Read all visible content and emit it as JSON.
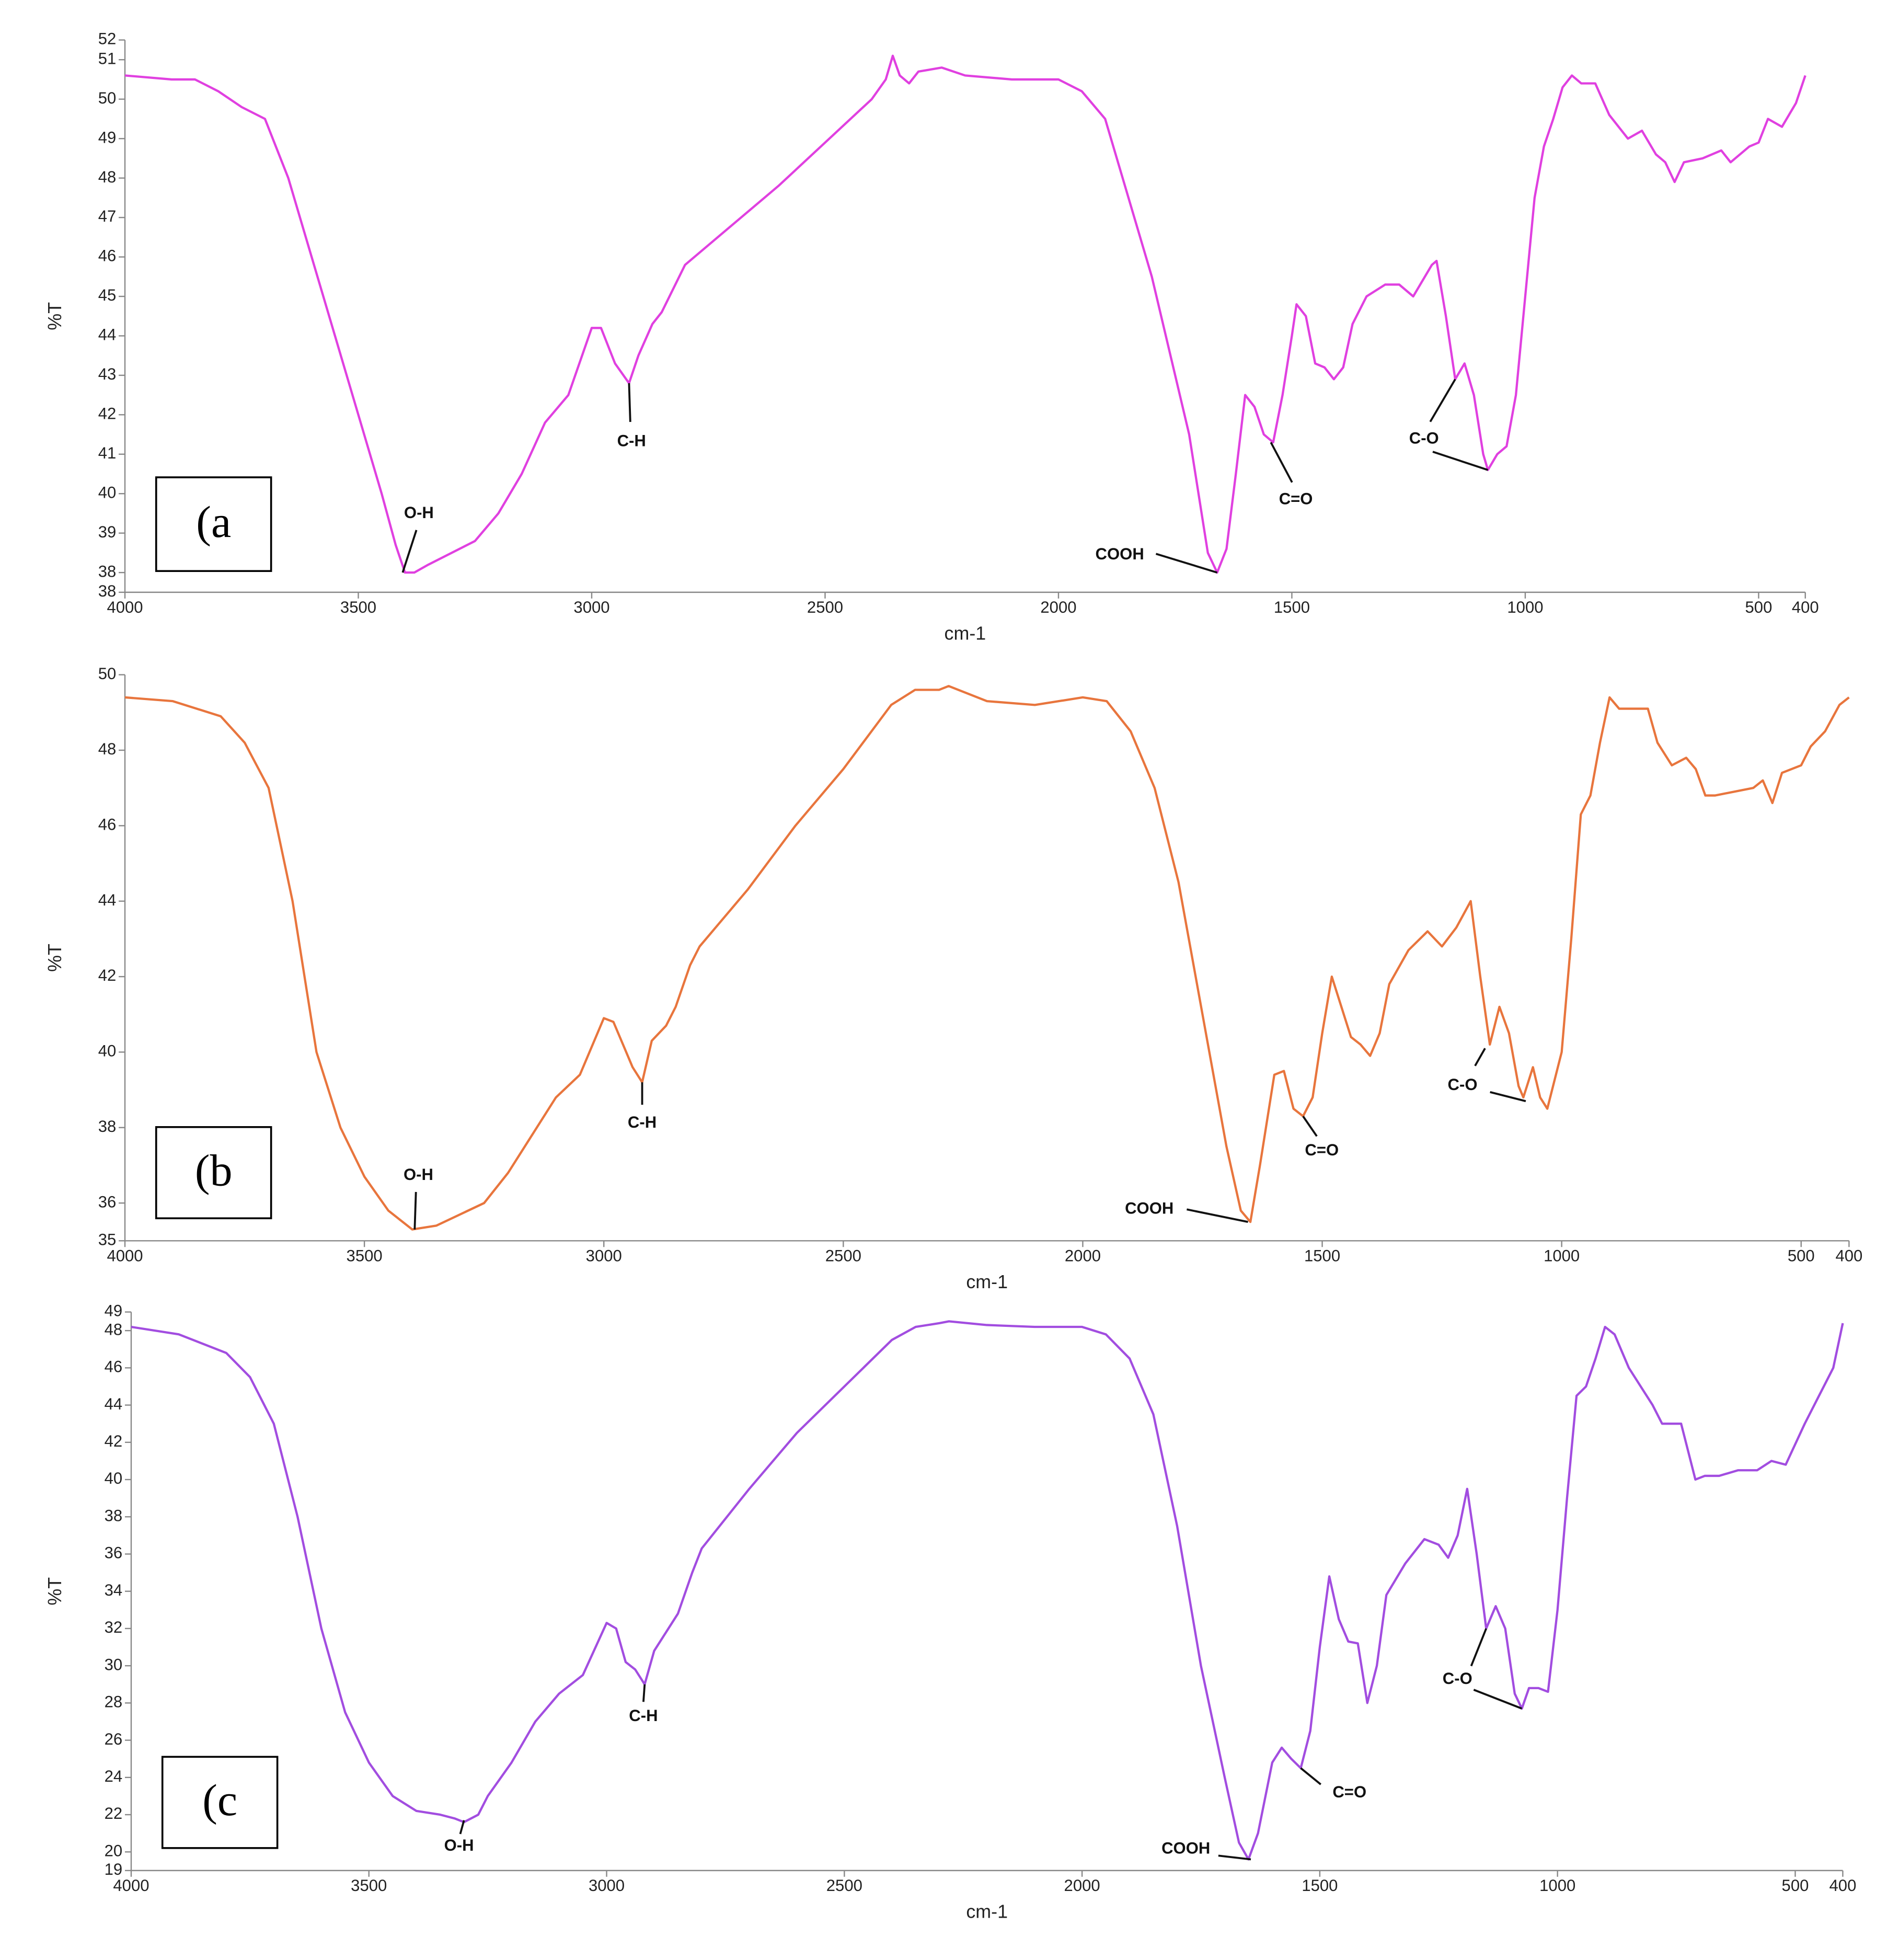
{
  "chart_data": [
    {
      "type": "line",
      "panel_label": "(a",
      "xlabel": "cm-1",
      "ylabel": "%T",
      "color": "#e040e0",
      "xlim": [
        4000,
        400
      ],
      "ylim": [
        37.5,
        51.5
      ],
      "xticks": [
        4000,
        3500,
        3000,
        2500,
        2000,
        1500,
        1000,
        500,
        400
      ],
      "yticks": [
        {
          "value": 37.5,
          "label": "38"
        },
        38,
        39,
        40,
        41,
        42,
        43,
        44,
        45,
        46,
        47,
        48,
        49,
        50,
        51,
        {
          "value": 51.5,
          "label": "52"
        }
      ],
      "x": [
        4000,
        3900,
        3850,
        3800,
        3750,
        3700,
        3650,
        3600,
        3550,
        3500,
        3450,
        3420,
        3400,
        3380,
        3350,
        3300,
        3250,
        3200,
        3150,
        3100,
        3050,
        3000,
        2980,
        2950,
        2920,
        2900,
        2870,
        2850,
        2800,
        2750,
        2700,
        2600,
        2500,
        2400,
        2370,
        2355,
        2340,
        2320,
        2300,
        2250,
        2200,
        2100,
        2000,
        1950,
        1900,
        1850,
        1800,
        1750,
        1720,
        1700,
        1680,
        1660,
        1640,
        1620,
        1600,
        1580,
        1560,
        1540,
        1520,
        1500,
        1490,
        1470,
        1450,
        1430,
        1410,
        1390,
        1370,
        1340,
        1300,
        1270,
        1240,
        1220,
        1200,
        1190,
        1170,
        1150,
        1130,
        1110,
        1090,
        1080,
        1060,
        1040,
        1020,
        1000,
        980,
        960,
        940,
        920,
        900,
        880,
        850,
        820,
        780,
        750,
        720,
        700,
        680,
        660,
        620,
        580,
        560,
        520,
        500,
        480,
        450,
        420,
        400
      ],
      "values": [
        50.6,
        50.5,
        50.5,
        50.2,
        49.8,
        49.5,
        48.0,
        46.0,
        44.0,
        42.0,
        40.0,
        38.7,
        38.0,
        38.0,
        38.2,
        38.5,
        38.8,
        39.5,
        40.5,
        41.8,
        42.5,
        44.2,
        44.2,
        43.3,
        42.8,
        43.5,
        44.3,
        44.6,
        45.8,
        46.3,
        46.8,
        47.8,
        48.9,
        50.0,
        50.5,
        51.1,
        50.6,
        50.4,
        50.7,
        50.8,
        50.6,
        50.5,
        50.5,
        50.2,
        49.5,
        47.5,
        45.5,
        43.0,
        41.5,
        40.0,
        38.5,
        38.0,
        38.6,
        40.5,
        42.5,
        42.2,
        41.5,
        41.3,
        42.5,
        44.0,
        44.8,
        44.5,
        43.3,
        43.2,
        42.9,
        43.2,
        44.3,
        45.0,
        45.3,
        45.3,
        45.0,
        45.4,
        45.8,
        45.9,
        44.5,
        42.9,
        43.3,
        42.5,
        41.0,
        40.6,
        41.0,
        41.2,
        42.5,
        45.0,
        47.5,
        48.8,
        49.5,
        50.3,
        50.6,
        50.4,
        50.4,
        49.6,
        49.0,
        49.2,
        48.6,
        48.4,
        47.9,
        48.4,
        48.5,
        48.7,
        48.4,
        48.8,
        48.9,
        49.5,
        49.3,
        49.9,
        50.6
      ],
      "annotations": [
        {
          "text": "O-H",
          "points": [
            {
              "x": 3405,
              "y": 38.0
            }
          ]
        },
        {
          "text": "C-H",
          "points": [
            {
              "x": 2920,
              "y": 42.8
            }
          ]
        },
        {
          "text": "COOH",
          "points": [
            {
              "x": 1660,
              "y": 38.0
            }
          ]
        },
        {
          "text": "C=O",
          "points": [
            {
              "x": 1545,
              "y": 41.3
            }
          ]
        },
        {
          "text": "C-O",
          "points": [
            {
              "x": 1150,
              "y": 42.9
            },
            {
              "x": 1080,
              "y": 40.6
            }
          ]
        }
      ]
    },
    {
      "type": "line",
      "panel_label": "(b",
      "xlabel": "cm-1",
      "ylabel": "%T",
      "color": "#e8753d",
      "xlim": [
        4000,
        400
      ],
      "ylim": [
        35,
        50
      ],
      "xticks": [
        4000,
        3500,
        3000,
        2500,
        2000,
        1500,
        1000,
        500,
        400
      ],
      "yticks": [
        35,
        36,
        38,
        40,
        42,
        44,
        46,
        48,
        50
      ],
      "x": [
        4000,
        3900,
        3800,
        3750,
        3700,
        3650,
        3600,
        3550,
        3500,
        3450,
        3400,
        3350,
        3300,
        3250,
        3200,
        3150,
        3100,
        3050,
        3000,
        2980,
        2960,
        2940,
        2920,
        2900,
        2870,
        2850,
        2820,
        2800,
        2700,
        2600,
        2500,
        2400,
        2350,
        2300,
        2280,
        2200,
        2100,
        2000,
        1950,
        1900,
        1850,
        1800,
        1750,
        1700,
        1670,
        1650,
        1630,
        1600,
        1580,
        1560,
        1540,
        1520,
        1500,
        1480,
        1460,
        1440,
        1420,
        1400,
        1380,
        1360,
        1320,
        1280,
        1250,
        1220,
        1190,
        1170,
        1150,
        1130,
        1110,
        1090,
        1080,
        1060,
        1045,
        1030,
        1000,
        980,
        960,
        940,
        920,
        900,
        880,
        850,
        820,
        800,
        770,
        740,
        720,
        700,
        680,
        640,
        600,
        580,
        560,
        540,
        500,
        480,
        450,
        420,
        400
      ],
      "values": [
        49.4,
        49.3,
        48.9,
        48.2,
        47.0,
        44.0,
        40.0,
        38.0,
        36.7,
        35.8,
        35.3,
        35.4,
        35.7,
        36.0,
        36.8,
        37.8,
        38.8,
        39.4,
        40.9,
        40.8,
        40.2,
        39.6,
        39.2,
        40.3,
        40.7,
        41.2,
        42.3,
        42.8,
        44.3,
        46.0,
        47.5,
        49.2,
        49.6,
        49.6,
        49.7,
        49.3,
        49.2,
        49.4,
        49.3,
        48.5,
        47.0,
        44.5,
        41.0,
        37.5,
        35.8,
        35.5,
        37.0,
        39.4,
        39.5,
        38.5,
        38.3,
        38.8,
        40.5,
        42.0,
        41.2,
        40.4,
        40.2,
        39.9,
        40.5,
        41.8,
        42.7,
        43.2,
        42.8,
        43.3,
        44.0,
        42.0,
        40.2,
        41.2,
        40.5,
        39.1,
        38.8,
        39.6,
        38.8,
        38.5,
        40.0,
        43.0,
        46.3,
        46.8,
        48.2,
        49.4,
        49.1,
        49.1,
        49.1,
        48.2,
        47.6,
        47.8,
        47.5,
        46.8,
        46.8,
        46.9,
        47.0,
        47.2,
        46.6,
        47.4,
        47.6,
        48.1,
        48.5,
        49.2,
        49.4
      ],
      "annotations": [
        {
          "text": "O-H",
          "points": [
            {
              "x": 3395,
              "y": 35.3
            }
          ]
        },
        {
          "text": "C-H",
          "points": [
            {
              "x": 2920,
              "y": 39.2
            }
          ]
        },
        {
          "text": "COOH",
          "points": [
            {
              "x": 1655,
              "y": 35.5
            }
          ]
        },
        {
          "text": "C=O",
          "points": [
            {
              "x": 1540,
              "y": 38.3
            }
          ]
        },
        {
          "text": "C-O",
          "points": [
            {
              "x": 1160,
              "y": 40.1
            },
            {
              "x": 1075,
              "y": 38.7
            }
          ]
        }
      ]
    },
    {
      "type": "line",
      "panel_label": "(c",
      "xlabel": "cm-1",
      "ylabel": "%T",
      "color": "#a24de0",
      "xlim": [
        4000,
        400
      ],
      "ylim": [
        19,
        49
      ],
      "xticks": [
        4000,
        3500,
        3000,
        2500,
        2000,
        1500,
        1000,
        500,
        400
      ],
      "yticks": [
        19,
        20,
        22,
        24,
        26,
        28,
        30,
        32,
        34,
        36,
        38,
        40,
        42,
        44,
        46,
        48,
        49
      ],
      "x": [
        4000,
        3900,
        3800,
        3750,
        3700,
        3650,
        3600,
        3550,
        3500,
        3450,
        3400,
        3350,
        3320,
        3300,
        3270,
        3250,
        3200,
        3150,
        3100,
        3050,
        3000,
        2980,
        2960,
        2940,
        2920,
        2900,
        2870,
        2850,
        2820,
        2800,
        2700,
        2600,
        2500,
        2400,
        2350,
        2300,
        2280,
        2200,
        2100,
        2000,
        1950,
        1900,
        1850,
        1800,
        1750,
        1700,
        1670,
        1650,
        1630,
        1600,
        1580,
        1560,
        1540,
        1520,
        1500,
        1480,
        1460,
        1440,
        1420,
        1400,
        1380,
        1360,
        1320,
        1280,
        1250,
        1230,
        1210,
        1190,
        1170,
        1150,
        1130,
        1110,
        1090,
        1075,
        1060,
        1040,
        1020,
        1000,
        980,
        960,
        940,
        920,
        900,
        880,
        850,
        800,
        780,
        740,
        710,
        690,
        660,
        620,
        580,
        550,
        520,
        480,
        450,
        420,
        400
      ],
      "values": [
        48.2,
        47.8,
        46.8,
        45.5,
        43.0,
        38.0,
        32.0,
        27.5,
        24.8,
        23.0,
        22.2,
        22.0,
        21.8,
        21.6,
        22.0,
        23.0,
        24.8,
        27.0,
        28.5,
        29.5,
        32.3,
        32.0,
        30.2,
        29.8,
        29.0,
        30.8,
        32.0,
        32.8,
        35.0,
        36.3,
        39.5,
        42.5,
        45.0,
        47.5,
        48.2,
        48.4,
        48.5,
        48.3,
        48.2,
        48.2,
        47.8,
        46.5,
        43.5,
        37.5,
        30.0,
        24.0,
        20.5,
        19.6,
        21.0,
        24.8,
        25.6,
        25.0,
        24.5,
        26.5,
        31.0,
        34.8,
        32.5,
        31.3,
        31.2,
        28.0,
        30.0,
        33.8,
        35.5,
        36.8,
        36.5,
        35.8,
        37.0,
        39.5,
        36.0,
        32.0,
        33.2,
        32.0,
        28.5,
        27.7,
        28.8,
        28.8,
        28.6,
        33.0,
        39.0,
        44.5,
        45.0,
        46.5,
        48.2,
        47.8,
        46.0,
        44.0,
        43.0,
        43.0,
        40.0,
        40.2,
        40.2,
        40.5,
        40.5,
        41.0,
        40.8,
        43.0,
        44.5,
        46.0,
        48.4
      ],
      "annotations": [
        {
          "text": "O-H",
          "points": [
            {
              "x": 3300,
              "y": 21.7
            }
          ]
        },
        {
          "text": "C-H",
          "points": [
            {
              "x": 2920,
              "y": 29.0
            }
          ]
        },
        {
          "text": "COOH",
          "points": [
            {
              "x": 1645,
              "y": 19.6
            }
          ]
        },
        {
          "text": "C=O",
          "points": [
            {
              "x": 1540,
              "y": 24.5
            }
          ]
        },
        {
          "text": "C-O",
          "points": [
            {
              "x": 1150,
              "y": 32.0
            },
            {
              "x": 1075,
              "y": 27.7
            }
          ]
        }
      ]
    }
  ]
}
